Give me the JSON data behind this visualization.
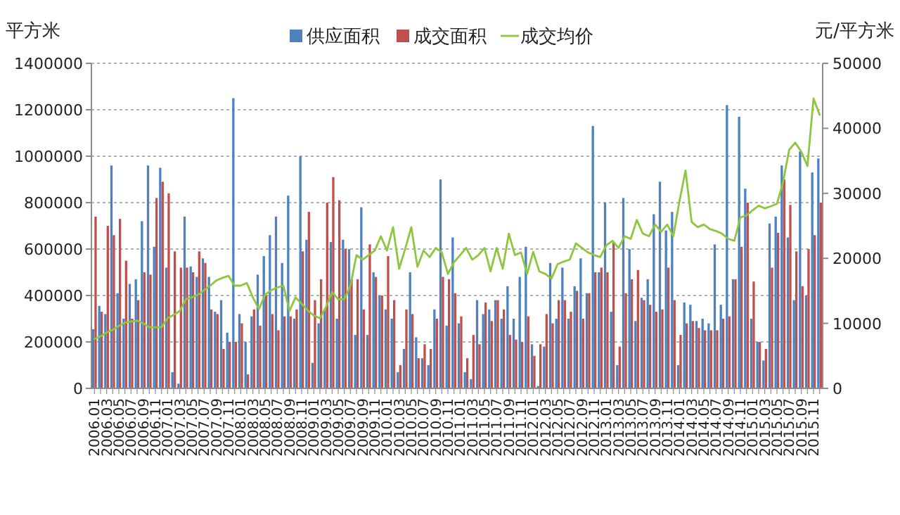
{
  "chart_data": {
    "type": "bar",
    "ylabel": "平方米",
    "y2label": "元/平方米",
    "categories": [
      "2006.01",
      null,
      "2006.03",
      null,
      "2006.05",
      null,
      "2006.07",
      null,
      "2006.09",
      null,
      "2006.11",
      null,
      "2007.01",
      null,
      "2007.03",
      null,
      "2007.05",
      null,
      "2007.07",
      null,
      "2007.09",
      null,
      "2007.11",
      null,
      "2008.01",
      null,
      "2008.03",
      null,
      "2008.05",
      null,
      "2008.07",
      null,
      "2008.09",
      null,
      "2008.11",
      null,
      "2009.01",
      null,
      "2009.03",
      null,
      "2009.05",
      null,
      "2009.07",
      null,
      "2009.09",
      null,
      "2009.11",
      null,
      "2010.01",
      null,
      "2010.03",
      null,
      "2010.05",
      null,
      "2010.07",
      null,
      "2010.09",
      null,
      "2010.11",
      null,
      "2011.01",
      null,
      "2011.03",
      null,
      "2011.05",
      null,
      "2011.07",
      null,
      "2011.09",
      null,
      "2011.11",
      null,
      "2012.01",
      null,
      "2012.03",
      null,
      "2012.05",
      null,
      "2012.07",
      null,
      "2012.09",
      null,
      "2012.11",
      null,
      "2013.01",
      null,
      "2013.03",
      null,
      "2013.05",
      null,
      "2013.07",
      null,
      "2013.09",
      null,
      "2013.11",
      null,
      "2014.01",
      null,
      "2014.03",
      null,
      "2014.05",
      null,
      "2014.07",
      null,
      "2014.09",
      null,
      "2014.11",
      null,
      "2015.01",
      null,
      "2015.03",
      null,
      "2015.05",
      null,
      "2015.07",
      null,
      "2015.09",
      null,
      "2015.11",
      null
    ],
    "series": [
      {
        "name": "供应面积",
        "color": "#4f81bd",
        "values": [
          255000,
          355000,
          320000,
          960000,
          410000,
          300000,
          450000,
          470000,
          720000,
          960000,
          610000,
          950000,
          520000,
          70000,
          20000,
          740000,
          525000,
          480000,
          560000,
          480000,
          330000,
          380000,
          240000,
          1250000,
          320000,
          200000,
          310000,
          490000,
          570000,
          660000,
          740000,
          540000,
          830000,
          300000,
          1000000,
          640000,
          110000,
          280000,
          340000,
          630000,
          300000,
          640000,
          600000,
          230000,
          780000,
          230000,
          500000,
          400000,
          340000,
          300000,
          70000,
          170000,
          500000,
          220000,
          130000,
          100000,
          340000,
          900000,
          270000,
          650000,
          280000,
          70000,
          40000,
          380000,
          320000,
          340000,
          380000,
          300000,
          440000,
          300000,
          480000,
          610000,
          190000,
          10000,
          180000,
          540000,
          300000,
          520000,
          300000,
          440000,
          560000,
          410000,
          1130000,
          500000,
          800000,
          330000,
          100000,
          820000,
          600000,
          290000,
          390000,
          470000,
          750000,
          890000,
          680000,
          760000,
          100000,
          370000,
          360000,
          290000,
          300000,
          280000,
          620000,
          360000,
          1220000,
          470000,
          1170000,
          860000,
          300000,
          200000,
          120000,
          710000,
          740000,
          960000,
          650000,
          380000,
          1020000,
          400000,
          930000,
          990000
        ]
      },
      {
        "name": "成交面积",
        "color": "#c0504d",
        "values": [
          740000,
          330000,
          700000,
          660000,
          730000,
          550000,
          300000,
          380000,
          500000,
          490000,
          820000,
          890000,
          840000,
          590000,
          520000,
          520000,
          500000,
          590000,
          540000,
          340000,
          320000,
          170000,
          200000,
          200000,
          280000,
          60000,
          340000,
          270000,
          400000,
          320000,
          250000,
          310000,
          310000,
          340000,
          590000,
          760000,
          380000,
          470000,
          800000,
          910000,
          810000,
          600000,
          470000,
          470000,
          340000,
          620000,
          480000,
          400000,
          570000,
          380000,
          100000,
          340000,
          320000,
          130000,
          190000,
          170000,
          300000,
          480000,
          470000,
          410000,
          310000,
          130000,
          230000,
          190000,
          370000,
          290000,
          380000,
          340000,
          230000,
          210000,
          200000,
          310000,
          140000,
          190000,
          320000,
          280000,
          380000,
          380000,
          330000,
          420000,
          300000,
          410000,
          500000,
          520000,
          500000,
          630000,
          180000,
          410000,
          470000,
          510000,
          380000,
          360000,
          330000,
          340000,
          520000,
          380000,
          230000,
          280000,
          290000,
          260000,
          250000,
          250000,
          250000,
          300000,
          310000,
          470000,
          610000,
          800000,
          460000,
          200000,
          170000,
          520000,
          670000,
          900000,
          790000,
          590000,
          440000,
          600000,
          660000,
          800000
        ]
      },
      {
        "name": "成交均价",
        "type": "line",
        "axis": "y2",
        "color": "#8dc63f",
        "values": [
          7600,
          8000,
          8600,
          9000,
          9600,
          10100,
          10300,
          10400,
          10000,
          9400,
          9400,
          9400,
          10800,
          11300,
          11900,
          13700,
          14000,
          14400,
          15100,
          15800,
          16600,
          17000,
          17300,
          15800,
          15800,
          16200,
          14000,
          12200,
          14400,
          15100,
          15500,
          15800,
          11900,
          14000,
          13000,
          12000,
          11200,
          10800,
          12500,
          14800,
          13700,
          13700,
          15800,
          20500,
          19800,
          20500,
          21200,
          23400,
          21200,
          24800,
          18400,
          21500,
          24800,
          18700,
          21200,
          20200,
          21600,
          20900,
          17600,
          19400,
          20500,
          21600,
          19800,
          20500,
          21600,
          18000,
          21600,
          18400,
          23800,
          20500,
          20900,
          17600,
          21000,
          18000,
          17600,
          16900,
          19100,
          19500,
          19800,
          22300,
          21600,
          20900,
          20500,
          20200,
          22000,
          22700,
          21600,
          23400,
          23000,
          25900,
          23800,
          23400,
          25200,
          24100,
          25200,
          23400,
          28800,
          33500,
          25600,
          24800,
          25200,
          24500,
          24200,
          23800,
          23000,
          22700,
          26300,
          26600,
          27400,
          28100,
          27700,
          28000,
          28400,
          31700,
          36700,
          37800,
          36400,
          34200,
          44600,
          42100
        ]
      }
    ],
    "ylim": [
      0,
      1400000
    ],
    "yticks": [
      0,
      200000,
      400000,
      600000,
      800000,
      1000000,
      1200000,
      1400000
    ],
    "y2lim": [
      0,
      50000
    ],
    "y2ticks": [
      0,
      10000,
      20000,
      30000,
      40000,
      50000
    ],
    "grid": "y",
    "legend": "top"
  }
}
